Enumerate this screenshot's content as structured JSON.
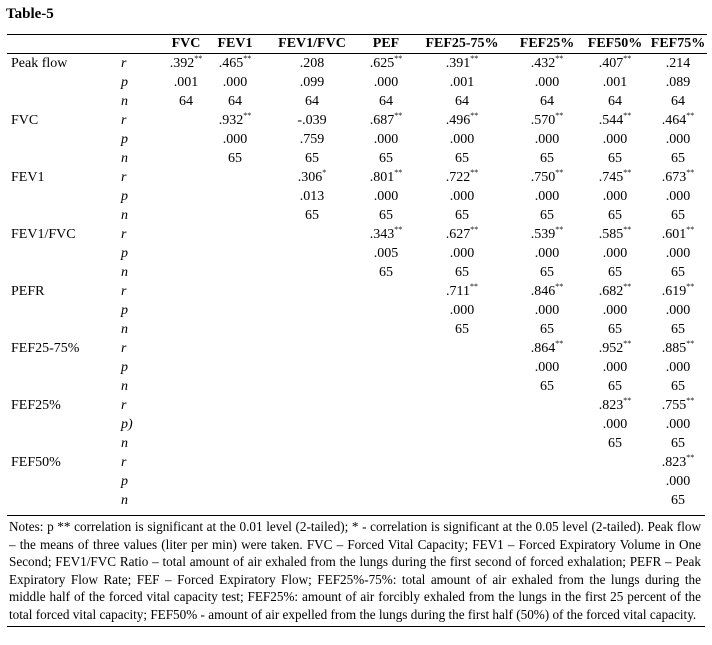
{
  "title": "Table-5",
  "headers": [
    "",
    "",
    "FVC",
    "FEV1",
    "FEV1/FVC",
    "PEF",
    "FEF25-75%",
    "FEF25%",
    "FEF50%",
    "FEF75%"
  ],
  "rows": [
    {
      "name": "Peak flow",
      "stat": "r",
      "cells": [
        [
          ".392",
          "**"
        ],
        [
          ".465",
          "**"
        ],
        [
          ".208",
          ""
        ],
        [
          ".625",
          "**"
        ],
        [
          ".391",
          "**"
        ],
        [
          ".432",
          "**"
        ],
        [
          ".407",
          "**"
        ],
        [
          ".214",
          ""
        ]
      ]
    },
    {
      "name": "",
      "stat": "p",
      "cells": [
        [
          ".001",
          ""
        ],
        [
          ".000",
          ""
        ],
        [
          ".099",
          ""
        ],
        [
          ".000",
          ""
        ],
        [
          ".001",
          ""
        ],
        [
          ".000",
          ""
        ],
        [
          ".001",
          ""
        ],
        [
          ".089",
          ""
        ]
      ]
    },
    {
      "name": "",
      "stat": "n",
      "cells": [
        [
          "64",
          ""
        ],
        [
          "64",
          ""
        ],
        [
          "64",
          ""
        ],
        [
          "64",
          ""
        ],
        [
          "64",
          ""
        ],
        [
          "64",
          ""
        ],
        [
          "64",
          ""
        ],
        [
          "64",
          ""
        ]
      ]
    },
    {
      "name": "FVC",
      "stat": "r",
      "cells": [
        [
          "",
          ""
        ],
        [
          ".932",
          "**"
        ],
        [
          "-.039",
          ""
        ],
        [
          ".687",
          "**"
        ],
        [
          ".496",
          "**"
        ],
        [
          ".570",
          "**"
        ],
        [
          ".544",
          "**"
        ],
        [
          ".464",
          "**"
        ]
      ]
    },
    {
      "name": "",
      "stat": "p",
      "cells": [
        [
          "",
          ""
        ],
        [
          ".000",
          ""
        ],
        [
          ".759",
          ""
        ],
        [
          ".000",
          ""
        ],
        [
          ".000",
          ""
        ],
        [
          ".000",
          ""
        ],
        [
          ".000",
          ""
        ],
        [
          ".000",
          ""
        ]
      ]
    },
    {
      "name": "",
      "stat": "n",
      "cells": [
        [
          "",
          ""
        ],
        [
          "65",
          ""
        ],
        [
          "65",
          ""
        ],
        [
          "65",
          ""
        ],
        [
          "65",
          ""
        ],
        [
          "65",
          ""
        ],
        [
          "65",
          ""
        ],
        [
          "65",
          ""
        ]
      ]
    },
    {
      "name": "FEV1",
      "stat": "r",
      "cells": [
        [
          "",
          ""
        ],
        [
          "",
          ""
        ],
        [
          ".306",
          "*"
        ],
        [
          ".801",
          "**"
        ],
        [
          ".722",
          "**"
        ],
        [
          ".750",
          "**"
        ],
        [
          ".745",
          "**"
        ],
        [
          ".673",
          "**"
        ]
      ]
    },
    {
      "name": "",
      "stat": "p",
      "cells": [
        [
          "",
          ""
        ],
        [
          "",
          ""
        ],
        [
          ".013",
          ""
        ],
        [
          ".000",
          ""
        ],
        [
          ".000",
          ""
        ],
        [
          ".000",
          ""
        ],
        [
          ".000",
          ""
        ],
        [
          ".000",
          ""
        ]
      ]
    },
    {
      "name": "",
      "stat": "n",
      "cells": [
        [
          "",
          ""
        ],
        [
          "",
          ""
        ],
        [
          "65",
          ""
        ],
        [
          "65",
          ""
        ],
        [
          "65",
          ""
        ],
        [
          "65",
          ""
        ],
        [
          "65",
          ""
        ],
        [
          "65",
          ""
        ]
      ]
    },
    {
      "name": "FEV1/FVC",
      "stat": "r",
      "cells": [
        [
          "",
          ""
        ],
        [
          "",
          ""
        ],
        [
          "",
          ""
        ],
        [
          ".343",
          "**"
        ],
        [
          ".627",
          "**"
        ],
        [
          ".539",
          "**"
        ],
        [
          ".585",
          "**"
        ],
        [
          ".601",
          "**"
        ]
      ]
    },
    {
      "name": "",
      "stat": "p",
      "cells": [
        [
          "",
          ""
        ],
        [
          "",
          ""
        ],
        [
          "",
          ""
        ],
        [
          ".005",
          ""
        ],
        [
          ".000",
          ""
        ],
        [
          ".000",
          ""
        ],
        [
          ".000",
          ""
        ],
        [
          ".000",
          ""
        ]
      ]
    },
    {
      "name": "",
      "stat": "n",
      "cells": [
        [
          "",
          ""
        ],
        [
          "",
          ""
        ],
        [
          "",
          ""
        ],
        [
          "65",
          ""
        ],
        [
          "65",
          ""
        ],
        [
          "65",
          ""
        ],
        [
          "65",
          ""
        ],
        [
          "65",
          ""
        ]
      ]
    },
    {
      "name": "PEFR",
      "stat": "r",
      "cells": [
        [
          "",
          ""
        ],
        [
          "",
          ""
        ],
        [
          "",
          ""
        ],
        [
          "",
          ""
        ],
        [
          ".711",
          "**"
        ],
        [
          ".846",
          "**"
        ],
        [
          ".682",
          "**"
        ],
        [
          ".619",
          "**"
        ]
      ]
    },
    {
      "name": "",
      "stat": "p",
      "cells": [
        [
          "",
          ""
        ],
        [
          "",
          ""
        ],
        [
          "",
          ""
        ],
        [
          "",
          ""
        ],
        [
          ".000",
          ""
        ],
        [
          ".000",
          ""
        ],
        [
          ".000",
          ""
        ],
        [
          ".000",
          ""
        ]
      ]
    },
    {
      "name": "",
      "stat": "n",
      "cells": [
        [
          "",
          ""
        ],
        [
          "",
          ""
        ],
        [
          "",
          ""
        ],
        [
          "",
          ""
        ],
        [
          "65",
          ""
        ],
        [
          "65",
          ""
        ],
        [
          "65",
          ""
        ],
        [
          "65",
          ""
        ]
      ]
    },
    {
      "name": "FEF25-75%",
      "stat": "r",
      "cells": [
        [
          "",
          ""
        ],
        [
          "",
          ""
        ],
        [
          "",
          ""
        ],
        [
          "",
          ""
        ],
        [
          "",
          ""
        ],
        [
          ".864",
          "**"
        ],
        [
          ".952",
          "**"
        ],
        [
          ".885",
          "**"
        ]
      ]
    },
    {
      "name": "",
      "stat": "p",
      "cells": [
        [
          "",
          ""
        ],
        [
          "",
          ""
        ],
        [
          "",
          ""
        ],
        [
          "",
          ""
        ],
        [
          "",
          ""
        ],
        [
          ".000",
          ""
        ],
        [
          ".000",
          ""
        ],
        [
          ".000",
          ""
        ]
      ]
    },
    {
      "name": "",
      "stat": "n",
      "cells": [
        [
          "",
          ""
        ],
        [
          "",
          ""
        ],
        [
          "",
          ""
        ],
        [
          "",
          ""
        ],
        [
          "",
          ""
        ],
        [
          "65",
          ""
        ],
        [
          "65",
          ""
        ],
        [
          "65",
          ""
        ]
      ]
    },
    {
      "name": "FEF25%",
      "stat": "r",
      "cells": [
        [
          "",
          ""
        ],
        [
          "",
          ""
        ],
        [
          "",
          ""
        ],
        [
          "",
          ""
        ],
        [
          "",
          ""
        ],
        [
          "",
          ""
        ],
        [
          ".823",
          "**"
        ],
        [
          ".755",
          "**"
        ]
      ]
    },
    {
      "name": "",
      "stat": "p)",
      "cells": [
        [
          "",
          ""
        ],
        [
          "",
          ""
        ],
        [
          "",
          ""
        ],
        [
          "",
          ""
        ],
        [
          "",
          ""
        ],
        [
          "",
          ""
        ],
        [
          ".000",
          ""
        ],
        [
          ".000",
          ""
        ]
      ]
    },
    {
      "name": "",
      "stat": "n",
      "cells": [
        [
          "",
          ""
        ],
        [
          "",
          ""
        ],
        [
          "",
          ""
        ],
        [
          "",
          ""
        ],
        [
          "",
          ""
        ],
        [
          "",
          ""
        ],
        [
          "65",
          ""
        ],
        [
          "65",
          ""
        ]
      ]
    },
    {
      "name": "FEF50%",
      "stat": "r",
      "cells": [
        [
          "",
          ""
        ],
        [
          "",
          ""
        ],
        [
          "",
          ""
        ],
        [
          "",
          ""
        ],
        [
          "",
          ""
        ],
        [
          "",
          ""
        ],
        [
          "",
          ""
        ],
        [
          ".823",
          "**"
        ]
      ]
    },
    {
      "name": "",
      "stat": "p",
      "cells": [
        [
          "",
          ""
        ],
        [
          "",
          ""
        ],
        [
          "",
          ""
        ],
        [
          "",
          ""
        ],
        [
          "",
          ""
        ],
        [
          "",
          ""
        ],
        [
          "",
          ""
        ],
        [
          ".000",
          ""
        ]
      ]
    },
    {
      "name": "",
      "stat": "n",
      "cells": [
        [
          "",
          ""
        ],
        [
          "",
          ""
        ],
        [
          "",
          ""
        ],
        [
          "",
          ""
        ],
        [
          "",
          ""
        ],
        [
          "",
          ""
        ],
        [
          "",
          ""
        ],
        [
          "65",
          ""
        ]
      ]
    }
  ],
  "notes": "Notes: p ** correlation is significant at the 0.01 level (2-tailed); * - correlation is significant at the 0.05 level (2-tailed). Peak flow – the means of three values (liter per min) were taken. FVC – Forced Vital Capacity; FEV1 – Forced Expiratory Volume in One Second; FEV1/FVC Ratio – total amount of air exhaled from the lungs during the first second of forced exhalation; PEFR – Peak Expiratory Flow Rate; FEF – Forced Expiratory Flow; FEF25%-75%: total amount of air exhaled from the lungs during the middle half of the forced vital capacity test; FEF25%: amount of air forcibly exhaled from the lungs in the first 25 percent of the total forced vital capacity; FEF50% - amount of air expelled from the lungs during the first half (50%) of the forced vital capacity."
}
